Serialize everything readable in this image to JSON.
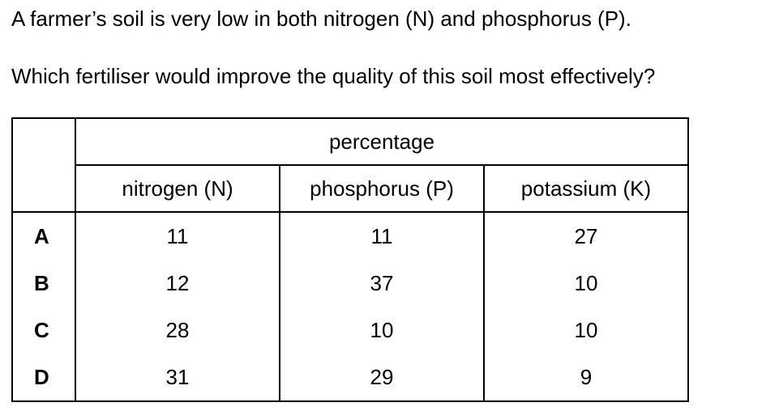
{
  "question": {
    "line1": "A farmer’s soil is very low in both nitrogen (N) and phosphorus (P).",
    "line2": "Which fertiliser would improve the quality of this soil most effectively?"
  },
  "table": {
    "group_header": "percentage",
    "columns": [
      "nitrogen (N)",
      "phosphorus (P)",
      "potassium (K)"
    ],
    "rows": [
      {
        "label": "A",
        "n": "11",
        "p": "11",
        "k": "27"
      },
      {
        "label": "B",
        "n": "12",
        "p": "37",
        "k": "10"
      },
      {
        "label": "C",
        "n": "28",
        "p": "10",
        "k": "10"
      },
      {
        "label": "D",
        "n": "31",
        "p": "29",
        "k": "9"
      }
    ]
  }
}
